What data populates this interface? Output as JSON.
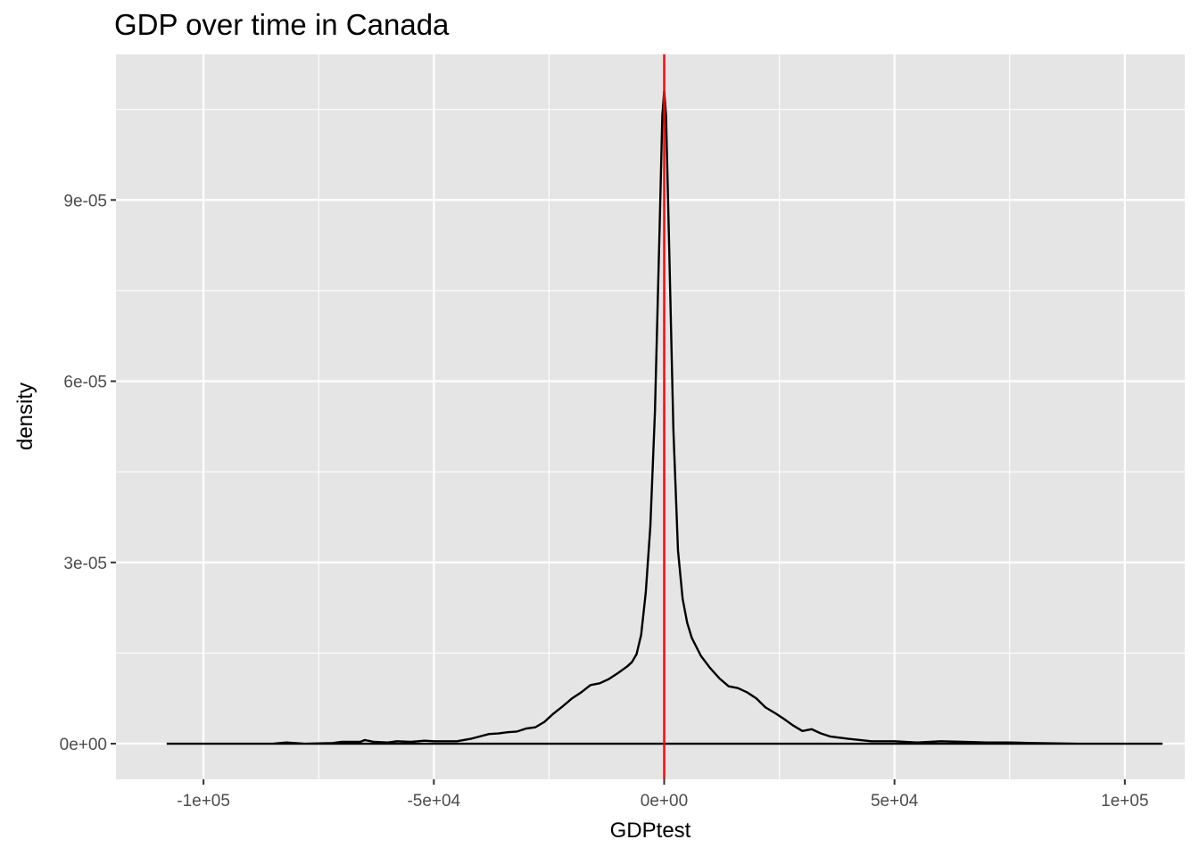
{
  "chart_data": {
    "type": "area",
    "title": "GDP over time in Canada",
    "xlabel": "GDPtest",
    "ylabel": "density",
    "xlim": [
      -119000,
      113000
    ],
    "ylim": [
      -5.9e-06,
      0.0001141
    ],
    "x_ticks": [
      -100000,
      -50000,
      0,
      50000,
      100000
    ],
    "x_tick_labels": [
      "-1e+05",
      "-5e+04",
      "0e+00",
      "5e+04",
      "1e+05"
    ],
    "y_ticks": [
      0,
      3e-05,
      6e-05,
      9e-05
    ],
    "y_tick_labels": [
      "0e+00",
      "3e-05",
      "6e-05",
      "9e-05"
    ],
    "grid": true,
    "reference_line": {
      "x": 0,
      "color": "#ff0000"
    },
    "series": [
      {
        "color": "#000000",
        "points": [
          [
            -108000,
            0.0
          ],
          [
            -95000,
            0.0
          ],
          [
            -85000,
            0.0
          ],
          [
            -82000,
            2e-07
          ],
          [
            -78000,
            0.0
          ],
          [
            -72000,
            1e-07
          ],
          [
            -70000,
            3e-07
          ],
          [
            -66000,
            3e-07
          ],
          [
            -65000,
            6e-07
          ],
          [
            -63000,
            3e-07
          ],
          [
            -60000,
            2e-07
          ],
          [
            -58000,
            4e-07
          ],
          [
            -55000,
            3e-07
          ],
          [
            -52000,
            5e-07
          ],
          [
            -50000,
            4e-07
          ],
          [
            -45000,
            4e-07
          ],
          [
            -42000,
            8e-07
          ],
          [
            -40000,
            1.2e-06
          ],
          [
            -38000,
            1.6e-06
          ],
          [
            -36000,
            1.7e-06
          ],
          [
            -34000,
            1.9e-06
          ],
          [
            -32000,
            2e-06
          ],
          [
            -30000,
            2.5e-06
          ],
          [
            -28000,
            2.7e-06
          ],
          [
            -26000,
            3.6e-06
          ],
          [
            -24000,
            5e-06
          ],
          [
            -22000,
            6.2e-06
          ],
          [
            -20000,
            7.5e-06
          ],
          [
            -18000,
            8.5e-06
          ],
          [
            -16000,
            9.7e-06
          ],
          [
            -14000,
            1e-05
          ],
          [
            -12000,
            1.07e-05
          ],
          [
            -10000,
            1.17e-05
          ],
          [
            -8000,
            1.28e-05
          ],
          [
            -7000,
            1.35e-05
          ],
          [
            -6000,
            1.48e-05
          ],
          [
            -5000,
            1.8e-05
          ],
          [
            -4000,
            2.5e-05
          ],
          [
            -3000,
            3.6e-05
          ],
          [
            -2000,
            5.5e-05
          ],
          [
            -1000,
            8.5e-05
          ],
          [
            -400,
            0.000104
          ],
          [
            0,
            0.000108
          ],
          [
            400,
            0.000104
          ],
          [
            1000,
            8.5e-05
          ],
          [
            2000,
            5.2e-05
          ],
          [
            3000,
            3.2e-05
          ],
          [
            4000,
            2.4e-05
          ],
          [
            5000,
            2e-05
          ],
          [
            6000,
            1.75e-05
          ],
          [
            7000,
            1.6e-05
          ],
          [
            8000,
            1.45e-05
          ],
          [
            10000,
            1.25e-05
          ],
          [
            12000,
            1.08e-05
          ],
          [
            14000,
            9.5e-06
          ],
          [
            16000,
            9.2e-06
          ],
          [
            18000,
            8.5e-06
          ],
          [
            20000,
            7.5e-06
          ],
          [
            22000,
            6e-06
          ],
          [
            24000,
            5.1e-06
          ],
          [
            26000,
            4.1e-06
          ],
          [
            28000,
            3e-06
          ],
          [
            30000,
            2.1e-06
          ],
          [
            32000,
            2.4e-06
          ],
          [
            34000,
            1.7e-06
          ],
          [
            36000,
            1.2e-06
          ],
          [
            40000,
            8e-07
          ],
          [
            45000,
            4e-07
          ],
          [
            50000,
            4e-07
          ],
          [
            55000,
            2e-07
          ],
          [
            60000,
            4e-07
          ],
          [
            65000,
            3e-07
          ],
          [
            70000,
            2e-07
          ],
          [
            75000,
            2e-07
          ],
          [
            80000,
            1e-07
          ],
          [
            90000,
            0.0
          ],
          [
            100000,
            0.0
          ],
          [
            108000,
            0.0
          ]
        ]
      }
    ]
  },
  "colors": {
    "panel": "#e5e5e5",
    "grid": "#ffffff",
    "tick_text": "#4d4d4d",
    "series": "#000000",
    "reference": "#ff0000"
  }
}
